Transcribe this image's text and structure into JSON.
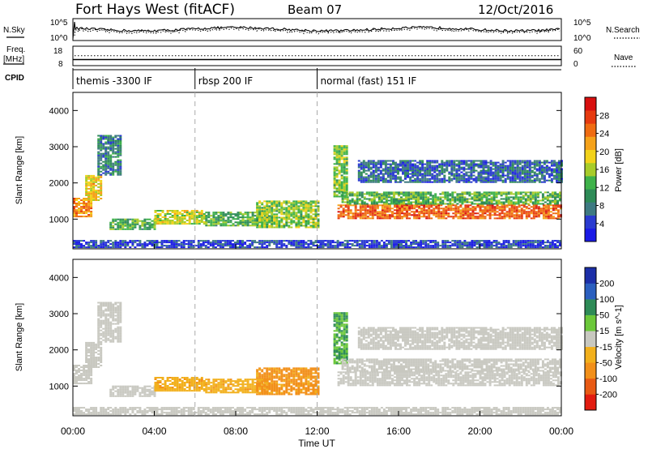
{
  "header": {
    "radar": "Fort Hays West (fitACF)",
    "beam": "Beam 07",
    "date": "12/Oct/2016"
  },
  "noise_panel": {
    "left_label": "N.Sky",
    "right_label": "N.Search",
    "left_ticks": [
      "10^5",
      "10^0"
    ],
    "right_ticks": [
      "10^5",
      "10^0"
    ]
  },
  "freq_panel": {
    "left_label_1": "Freq.",
    "left_label_2": "[MHz]",
    "left_ticks": [
      "18",
      "8"
    ],
    "right_label": "Nave",
    "right_ticks": [
      "60",
      "0"
    ],
    "freq_value": 10.5,
    "nave_value": 31
  },
  "cpid": {
    "label": "CPID",
    "segments": [
      {
        "text": "themis -3300 IF",
        "start_hour": 0,
        "end_hour": 6
      },
      {
        "text": "rbsp 200 IF",
        "start_hour": 6,
        "end_hour": 12
      },
      {
        "text": "normal (fast) 151 IF",
        "start_hour": 12,
        "end_hour": 24
      }
    ]
  },
  "axes": {
    "ylabel": "Slant Range [km]",
    "xlabel": "Time UT",
    "yticks": [
      1000,
      2000,
      3000,
      4000
    ],
    "xticks": [
      "00:00",
      "04:00",
      "08:00",
      "12:00",
      "16:00",
      "20:00",
      "00:00"
    ],
    "xlim_hours": [
      0,
      24
    ],
    "ylim_km": [
      180,
      4500
    ]
  },
  "power_colorbar": {
    "label": "Power [dB]",
    "ticks": [
      "4",
      "8",
      "12",
      "16",
      "20",
      "24",
      "28"
    ],
    "colors": [
      "#1a1ae6",
      "#2a3bd0",
      "#3e7a82",
      "#2e8b57",
      "#3fb24a",
      "#a8cc2a",
      "#f2d21a",
      "#f5a21a",
      "#ef6c12",
      "#e63a10",
      "#d80f0f"
    ]
  },
  "velocity_colorbar": {
    "label": "Velocity [m s^-1]",
    "ticks": [
      "200",
      "100",
      "50",
      "15",
      "-15",
      "-50",
      "-100",
      "-200"
    ],
    "colors": [
      "#1c2fa8",
      "#2b5fbf",
      "#2e8b57",
      "#6cc83a",
      "#c8c8c0",
      "#f2b01c",
      "#f2901a",
      "#e85a14",
      "#e21c10"
    ]
  },
  "chart_data": [
    {
      "type": "heatmap",
      "title": "Power [dB]",
      "xlabel": "Time UT",
      "ylabel": "Slant Range [km]",
      "x_unit": "hour UT",
      "xlim": [
        0,
        24
      ],
      "ylim": [
        180,
        4500
      ],
      "regions": [
        {
          "t_start": 0.0,
          "t_end": 0.9,
          "r_low": 1050,
          "r_high": 1550,
          "value_db": 24
        },
        {
          "t_start": 0.6,
          "t_end": 1.4,
          "r_low": 1500,
          "r_high": 2200,
          "value_db": 20
        },
        {
          "t_start": 1.2,
          "t_end": 2.3,
          "r_low": 2200,
          "r_high": 3300,
          "value_db": 10
        },
        {
          "t_start": 1.8,
          "t_end": 4.0,
          "r_low": 700,
          "r_high": 1000,
          "value_db": 14
        },
        {
          "t_start": 4.0,
          "t_end": 6.5,
          "r_low": 850,
          "r_high": 1250,
          "value_db": 18
        },
        {
          "t_start": 6.5,
          "t_end": 9.5,
          "r_low": 800,
          "r_high": 1200,
          "value_db": 14
        },
        {
          "t_start": 9.0,
          "t_end": 12.0,
          "r_low": 750,
          "r_high": 1500,
          "value_db": 16
        },
        {
          "t_start": 12.8,
          "t_end": 13.5,
          "r_low": 1600,
          "r_high": 3000,
          "value_db": 16
        },
        {
          "t_start": 13.0,
          "t_end": 24.0,
          "r_low": 1000,
          "r_high": 1400,
          "value_db": 26
        },
        {
          "t_start": 13.2,
          "t_end": 24.0,
          "r_low": 1400,
          "r_high": 1750,
          "value_db": 14
        },
        {
          "t_start": 14.0,
          "t_end": 24.0,
          "r_low": 2000,
          "r_high": 2600,
          "value_db": 8
        },
        {
          "t_start": 0.0,
          "t_end": 24.0,
          "r_low": 200,
          "r_high": 400,
          "value_db": 6
        }
      ]
    },
    {
      "type": "heatmap",
      "title": "Velocity [m s^-1]",
      "xlabel": "Time UT",
      "ylabel": "Slant Range [km]",
      "x_unit": "hour UT",
      "xlim": [
        0,
        24
      ],
      "ylim": [
        180,
        4500
      ],
      "regions": [
        {
          "t_start": 0.0,
          "t_end": 0.9,
          "r_low": 1050,
          "r_high": 1550,
          "value_ms": 0
        },
        {
          "t_start": 0.6,
          "t_end": 1.4,
          "r_low": 1500,
          "r_high": 2200,
          "value_ms": 0
        },
        {
          "t_start": 1.2,
          "t_end": 2.3,
          "r_low": 2200,
          "r_high": 3300,
          "value_ms": 0
        },
        {
          "t_start": 1.8,
          "t_end": 4.0,
          "r_low": 700,
          "r_high": 1000,
          "value_ms": 0
        },
        {
          "t_start": 4.0,
          "t_end": 6.5,
          "r_low": 850,
          "r_high": 1250,
          "value_ms": -40
        },
        {
          "t_start": 6.5,
          "t_end": 9.5,
          "r_low": 800,
          "r_high": 1200,
          "value_ms": -40
        },
        {
          "t_start": 9.0,
          "t_end": 12.0,
          "r_low": 750,
          "r_high": 1500,
          "value_ms": -60
        },
        {
          "t_start": 12.8,
          "t_end": 13.5,
          "r_low": 1600,
          "r_high": 3000,
          "value_ms": 30
        },
        {
          "t_start": 13.0,
          "t_end": 24.0,
          "r_low": 1000,
          "r_high": 1400,
          "value_ms": 0
        },
        {
          "t_start": 13.2,
          "t_end": 24.0,
          "r_low": 1400,
          "r_high": 1750,
          "value_ms": 0
        },
        {
          "t_start": 14.0,
          "t_end": 24.0,
          "r_low": 2000,
          "r_high": 2600,
          "value_ms": 0
        },
        {
          "t_start": 0.0,
          "t_end": 24.0,
          "r_low": 200,
          "r_high": 400,
          "value_ms": 0
        }
      ]
    }
  ]
}
